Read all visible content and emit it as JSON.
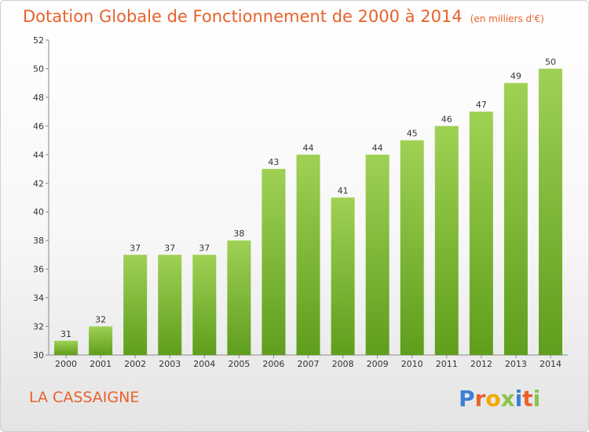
{
  "title": "Dotation Globale de Fonctionnement de 2000 à 2014",
  "subtitle": "(en milliers d'€)",
  "commune": "LA CASSAIGNE",
  "brand": {
    "letters": [
      "P",
      "r",
      "o",
      "x",
      "i",
      "t",
      "i"
    ],
    "colors": [
      "#3a7fd5",
      "#e8612c",
      "#f2a900",
      "#8bc34a",
      "#3a7fd5",
      "#e8612c",
      "#8bc34a"
    ]
  },
  "colors": {
    "bar_top": "#9fd154",
    "bar_bottom": "#5f9e1c",
    "text_accent": "#e8612c"
  },
  "chart_data": {
    "type": "bar",
    "categories": [
      "2000",
      "2001",
      "2002",
      "2003",
      "2004",
      "2005",
      "2006",
      "2007",
      "2008",
      "2009",
      "2010",
      "2011",
      "2012",
      "2013",
      "2014"
    ],
    "values": [
      31,
      32,
      37,
      37,
      37,
      38,
      43,
      44,
      41,
      44,
      45,
      46,
      47,
      49,
      50
    ],
    "data_labels": [
      "31",
      "32",
      "37",
      "37",
      "37",
      "38",
      "43",
      "44",
      "41",
      "44",
      "45",
      "46",
      "47",
      "49",
      "50"
    ],
    "yticks": [
      "30",
      "32",
      "34",
      "36",
      "38",
      "40",
      "42",
      "44",
      "46",
      "48",
      "50",
      "52"
    ],
    "ylim": [
      30,
      52
    ],
    "grid": false
  }
}
